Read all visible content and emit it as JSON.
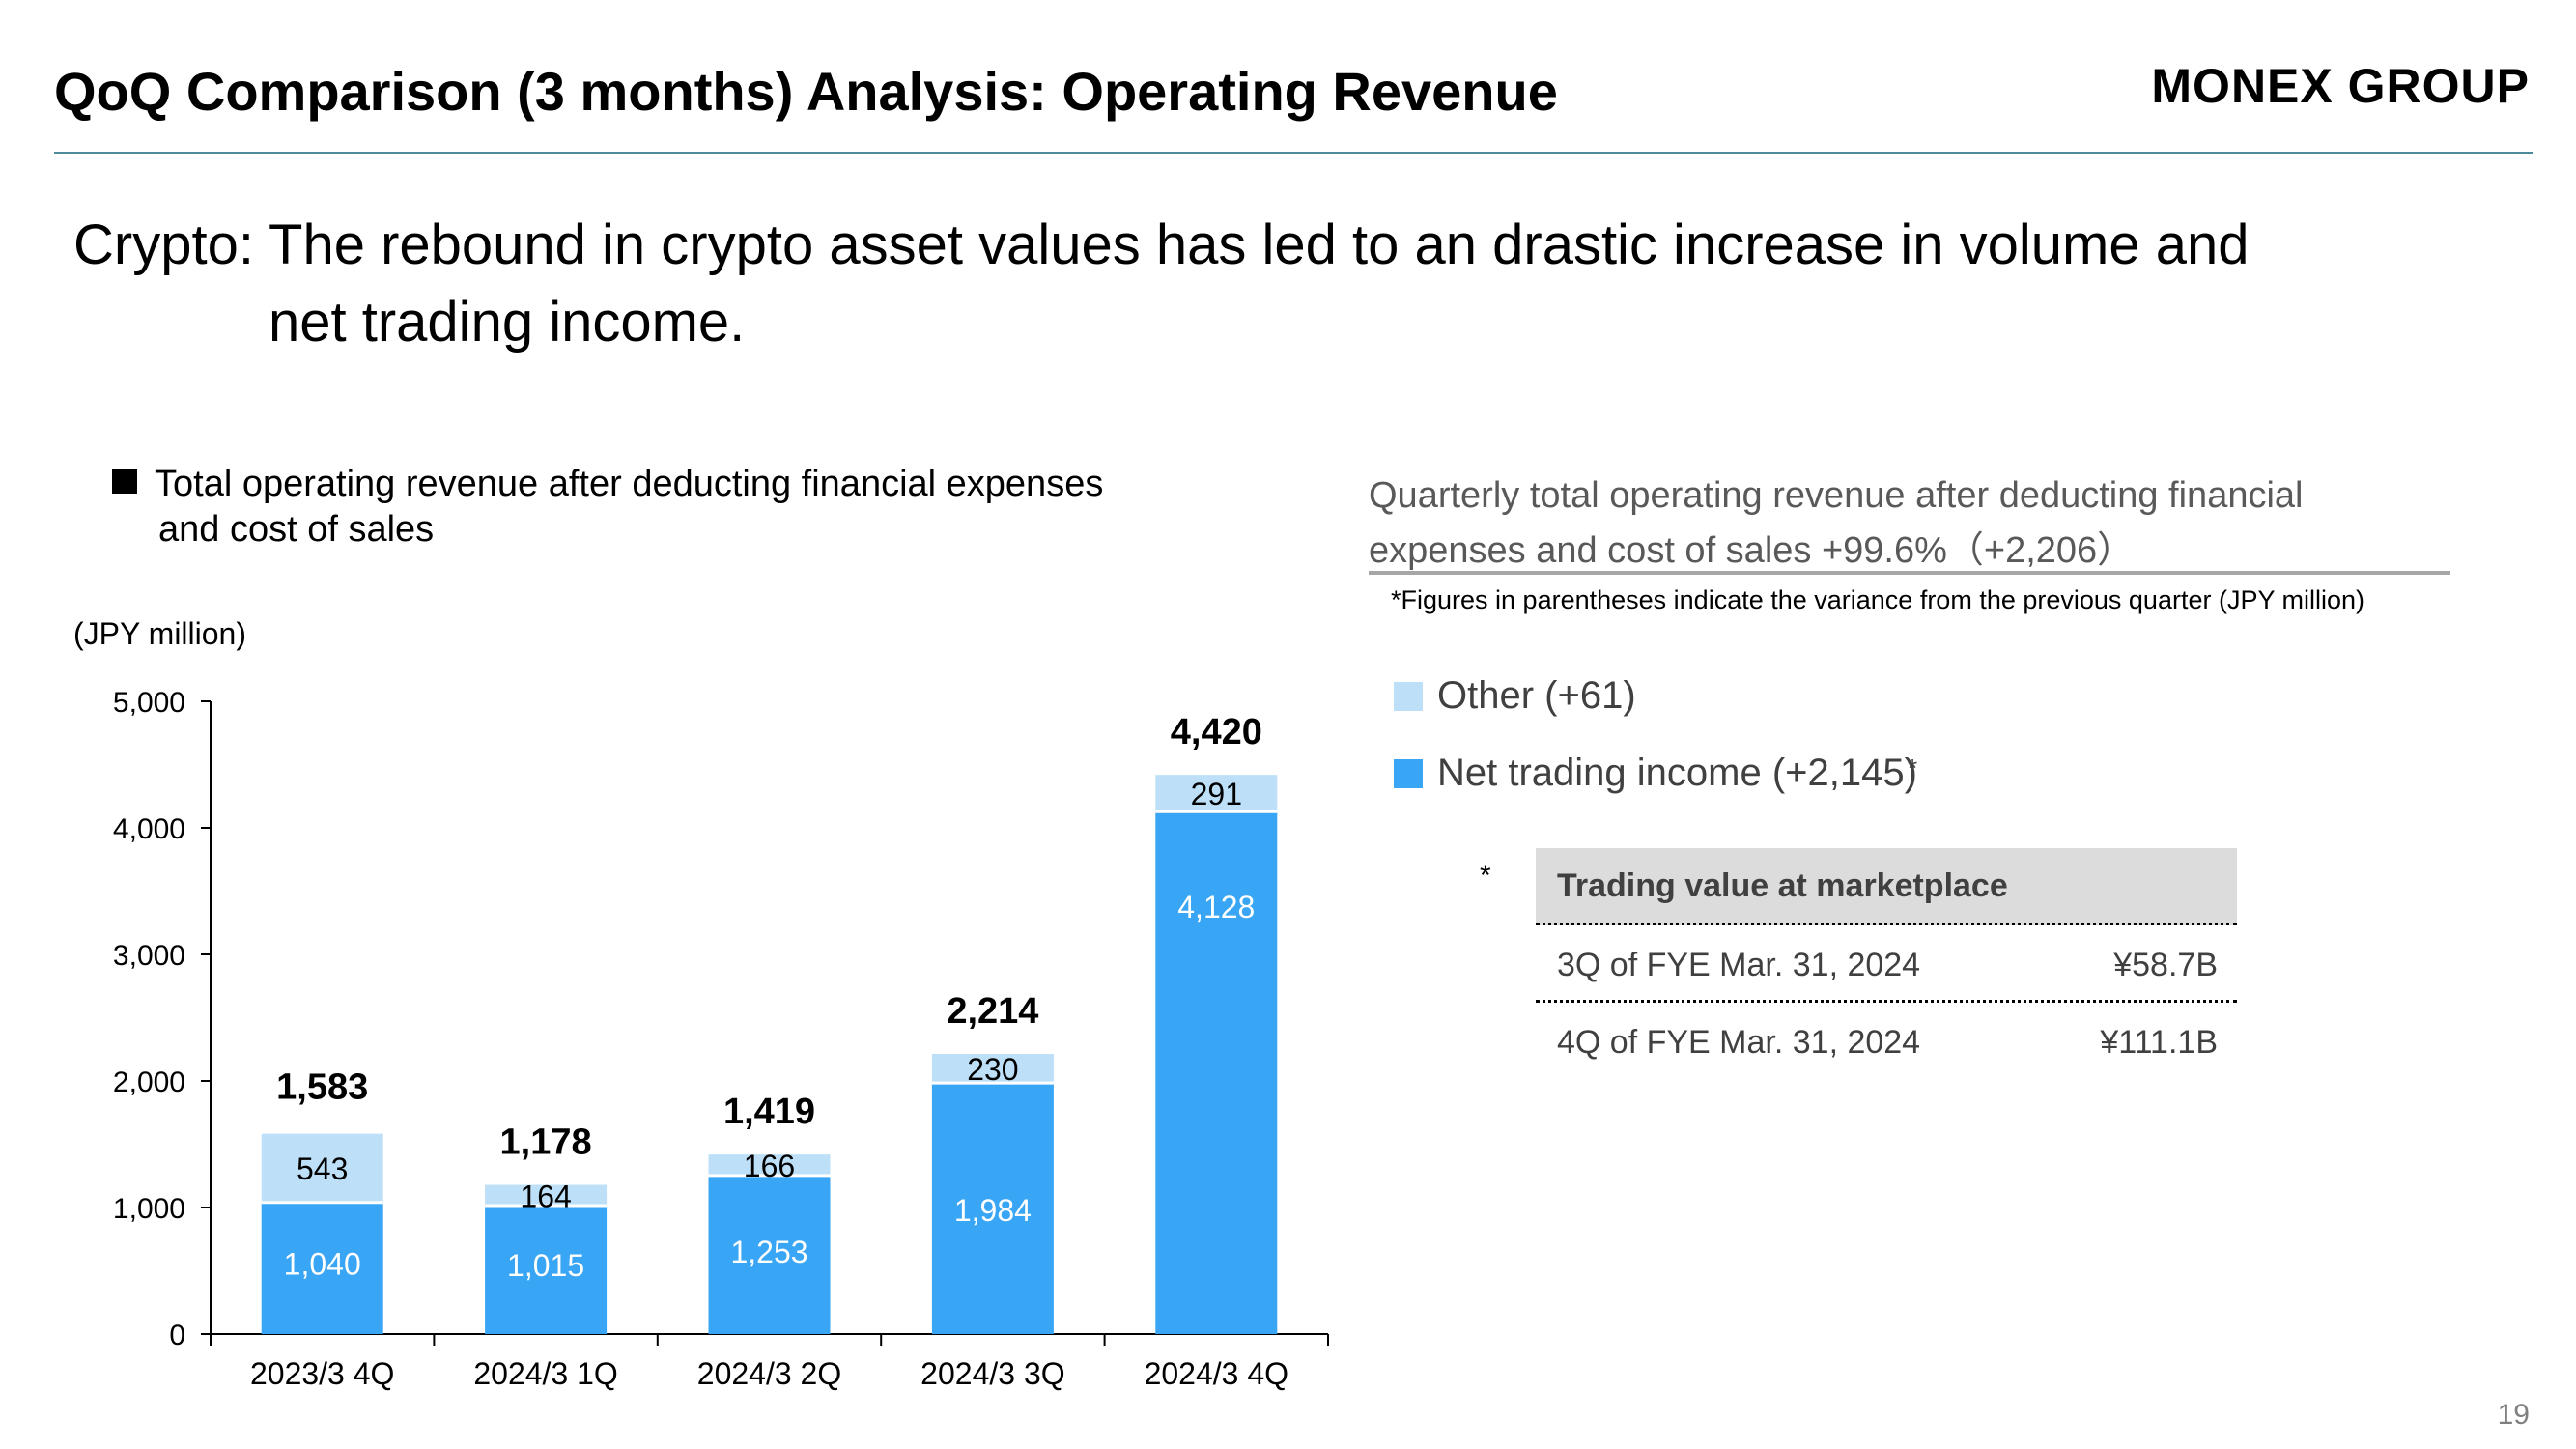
{
  "header": {
    "title": "QoQ Comparison (3 months) Analysis: Operating Revenue",
    "logo_text": "MONEX GROUP"
  },
  "headline": {
    "line1": "Crypto: The rebound in crypto asset values has led to an drastic increase in volume and",
    "line2": "net trading income."
  },
  "chart_caption": {
    "line1": "Total operating revenue after deducting financial expenses",
    "line2": "and cost of sales"
  },
  "chart_data": {
    "type": "bar",
    "stacked": true,
    "unit_label": "(JPY million)",
    "categories": [
      "2023/3 4Q",
      "2024/3 1Q",
      "2024/3 2Q",
      "2024/3 3Q",
      "2024/3 4Q"
    ],
    "series": [
      {
        "name": "Net trading income",
        "color": "#39a5f5",
        "values": [
          1040,
          1015,
          1253,
          1984,
          4128
        ]
      },
      {
        "name": "Other",
        "color": "#bde0f8",
        "values": [
          543,
          164,
          166,
          230,
          291
        ]
      }
    ],
    "totals": [
      1583,
      1178,
      1419,
      2214,
      4420
    ],
    "value_labels": {
      "net": [
        "1,040",
        "1,015",
        "1,253",
        "1,984",
        "4,128"
      ],
      "other": [
        "543",
        "164",
        "166",
        "230",
        "291"
      ],
      "totals": [
        "1,583",
        "1,178",
        "1,419",
        "2,214",
        "4,420"
      ]
    },
    "ylim": [
      0,
      5000
    ],
    "yticks": [
      0,
      1000,
      2000,
      3000,
      4000,
      5000
    ],
    "ytick_labels": [
      "0",
      "1,000",
      "2,000",
      "3,000",
      "4,000",
      "5,000"
    ],
    "grid": false,
    "legend": "right"
  },
  "summary": {
    "line1": "Quarterly total operating revenue after deducting financial",
    "line2": "expenses and cost of sales +99.6%（+2,206）",
    "note": "*Figures in parentheses indicate the variance from the previous quarter (JPY million)"
  },
  "legend": {
    "other": "Other (+61)",
    "net": "Net trading income (+2,145)",
    "net_marker": "*"
  },
  "trading_table": {
    "marker": "*",
    "header": "Trading value at marketplace",
    "rows": [
      {
        "period": "3Q of FYE Mar. 31, 2024",
        "value": "¥58.7B"
      },
      {
        "period": "4Q of FYE Mar. 31, 2024",
        "value": "¥111.1B"
      }
    ]
  },
  "page_number": "19"
}
